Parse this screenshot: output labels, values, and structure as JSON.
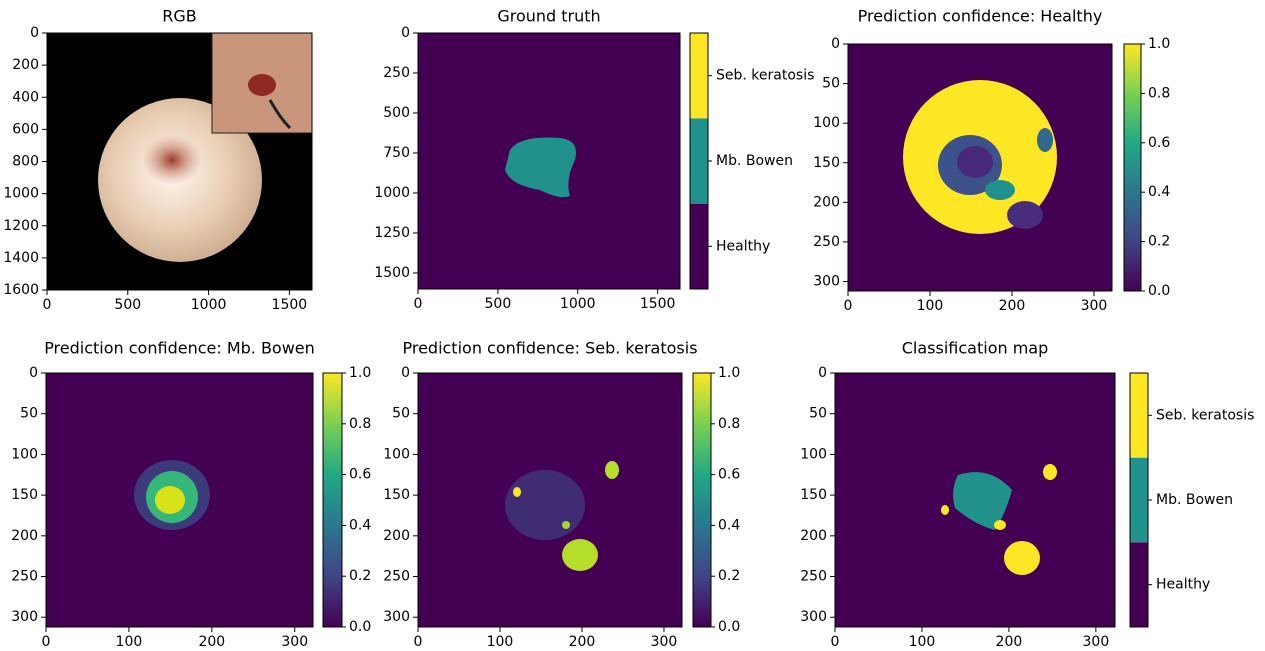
{
  "chart_data": [
    {
      "type": "image",
      "title": "RGB",
      "xlim": [
        0,
        1640
      ],
      "xticks": [
        0,
        500,
        1000,
        1500
      ],
      "ylim": [
        1600,
        0
      ],
      "yticks": [
        0,
        200,
        400,
        600,
        800,
        1000,
        1200,
        1400,
        1600
      ]
    },
    {
      "type": "image",
      "title": "Ground truth",
      "xlim": [
        0,
        1640
      ],
      "xticks": [
        0,
        500,
        1000,
        1500
      ],
      "ylim": [
        1600,
        0
      ],
      "yticks": [
        0,
        250,
        500,
        750,
        1000,
        1250,
        1500
      ],
      "colorbar": {
        "categories": [
          "Healthy",
          "Mb. Bowen",
          "Seb. keratosis"
        ],
        "colors": [
          "#440154",
          "#21918c",
          "#fde725"
        ]
      }
    },
    {
      "type": "image",
      "title": "Prediction confidence: Healthy",
      "xlim": [
        0,
        322
      ],
      "xticks": [
        0,
        100,
        200,
        300
      ],
      "ylim": [
        312,
        0
      ],
      "yticks": [
        0,
        50,
        100,
        150,
        200,
        250,
        300
      ],
      "colorbar": {
        "lim": [
          0,
          1
        ],
        "ticks": [
          {
            "value": 0,
            "label": "0.0"
          },
          0.2,
          0.4,
          0.6,
          0.8,
          {
            "value": 1,
            "label": "1.0"
          }
        ]
      }
    },
    {
      "type": "image",
      "title": "Prediction confidence: Mb. Bowen",
      "xlim": [
        0,
        322
      ],
      "xticks": [
        0,
        100,
        200,
        300
      ],
      "ylim": [
        312,
        0
      ],
      "yticks": [
        0,
        50,
        100,
        150,
        200,
        250,
        300
      ],
      "colorbar": {
        "lim": [
          0,
          1
        ],
        "ticks": [
          {
            "value": 0,
            "label": "0.0"
          },
          0.2,
          0.4,
          0.6,
          0.8,
          {
            "value": 1,
            "label": "1.0"
          }
        ]
      }
    },
    {
      "type": "image",
      "title": "Prediction confidence: Seb. keratosis",
      "xlim": [
        0,
        322
      ],
      "xticks": [
        0,
        100,
        200,
        300
      ],
      "ylim": [
        312,
        0
      ],
      "yticks": [
        0,
        50,
        100,
        150,
        200,
        250,
        300
      ],
      "colorbar": {
        "lim": [
          0,
          1
        ],
        "ticks": [
          {
            "value": 0,
            "label": "0.0"
          },
          0.2,
          0.4,
          0.6,
          0.8,
          {
            "value": 1,
            "label": "1.0"
          }
        ]
      }
    },
    {
      "type": "image",
      "title": "Classification map",
      "xlim": [
        0,
        322
      ],
      "xticks": [
        0,
        100,
        200,
        300
      ],
      "ylim": [
        312,
        0
      ],
      "yticks": [
        0,
        50,
        100,
        150,
        200,
        250,
        300
      ],
      "colorbar": {
        "categories": [
          "Healthy",
          "Mb. Bowen",
          "Seb. keratosis"
        ],
        "colors": [
          "#440154",
          "#21918c",
          "#fde725"
        ]
      }
    }
  ]
}
